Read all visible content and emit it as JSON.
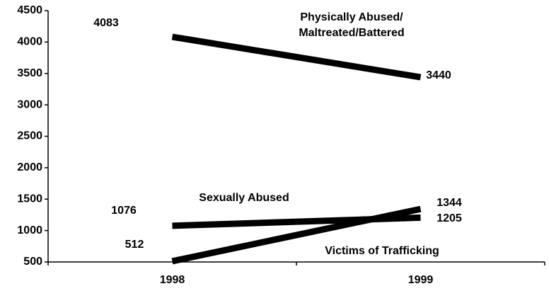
{
  "chart_data": {
    "type": "line",
    "categories": [
      "1998",
      "1999"
    ],
    "series": [
      {
        "name": "Physically Abused/ Maltreated/Battered",
        "color": "#000000",
        "values": [
          4083,
          3440
        ]
      },
      {
        "name": "Sexually Abused",
        "color": "#000000",
        "values": [
          1076,
          1205
        ]
      },
      {
        "name": "Victims of Trafficking",
        "color": "#000000",
        "values": [
          512,
          1344
        ]
      }
    ],
    "ylim": [
      500,
      4500
    ],
    "yticks": [
      500,
      1000,
      1500,
      2000,
      2500,
      3000,
      3500,
      4000,
      4500
    ],
    "grid": false
  }
}
